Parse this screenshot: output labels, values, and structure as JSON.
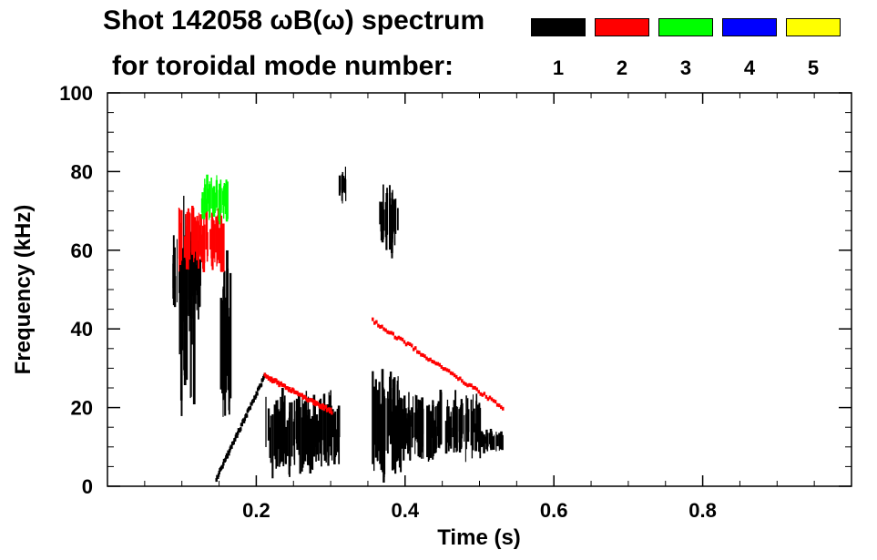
{
  "title_line1": "Shot 142058 ωB(ω) spectrum",
  "title_line2": "for toroidal mode number:",
  "legend": [
    {
      "label": "1",
      "color": "#000000"
    },
    {
      "label": "2",
      "color": "#ff0000"
    },
    {
      "label": "3",
      "color": "#00ff00"
    },
    {
      "label": "4",
      "color": "#0000ff"
    },
    {
      "label": "5",
      "color": "#ffff00"
    }
  ],
  "chart_data": {
    "type": "heatmap",
    "xlabel": "Time (s)",
    "ylabel": "Frequency (kHz)",
    "xlim": [
      0.0,
      1.0
    ],
    "ylim": [
      0,
      100
    ],
    "x_ticks": [
      0.2,
      0.4,
      0.6,
      0.8
    ],
    "x_tick_labels": [
      "0.2",
      "0.4",
      "0.6",
      "0.8"
    ],
    "y_ticks": [
      0,
      20,
      40,
      60,
      80,
      100
    ],
    "y_tick_labels": [
      "0",
      "20",
      "40",
      "60",
      "80",
      "100"
    ],
    "grid": false,
    "legend_position": "top-right",
    "mode_colors": {
      "1": "#000000",
      "2": "#ff0000",
      "3": "#00ff00",
      "4": "#0000ff",
      "5": "#ffff00"
    },
    "regions": [
      {
        "mode": "1",
        "t": [
          0.085,
          0.125
        ],
        "f": [
          44,
          62
        ]
      },
      {
        "mode": "1",
        "t": [
          0.095,
          0.115
        ],
        "f": [
          25,
          70
        ]
      },
      {
        "mode": "1",
        "t": [
          0.15,
          0.165
        ],
        "f": [
          20,
          55
        ]
      },
      {
        "mode": "1",
        "t": [
          0.21,
          0.31
        ],
        "f": [
          5,
          22
        ]
      },
      {
        "mode": "1",
        "t": [
          0.31,
          0.32
        ],
        "f": [
          73,
          80
        ]
      },
      {
        "mode": "1",
        "t": [
          0.355,
          0.395
        ],
        "f": [
          4,
          28
        ]
      },
      {
        "mode": "1",
        "t": [
          0.365,
          0.39
        ],
        "f": [
          60,
          75
        ]
      },
      {
        "mode": "1",
        "t": [
          0.39,
          0.5
        ],
        "f": [
          8,
          22
        ]
      },
      {
        "mode": "1",
        "t": [
          0.5,
          0.53
        ],
        "f": [
          9,
          14
        ]
      },
      {
        "mode": "2",
        "t": [
          0.095,
          0.155
        ],
        "f": [
          56,
          70
        ]
      },
      {
        "mode": "3",
        "t": [
          0.125,
          0.16
        ],
        "f": [
          68,
          78
        ]
      }
    ],
    "traces": [
      {
        "mode": "1",
        "t": [
          0.145,
          0.21
        ],
        "f": [
          2,
          28
        ]
      },
      {
        "mode": "2",
        "t": [
          0.21,
          0.3
        ],
        "f": [
          28,
          19
        ]
      },
      {
        "mode": "2",
        "t": [
          0.355,
          0.53
        ],
        "f": [
          42,
          20
        ]
      }
    ]
  }
}
